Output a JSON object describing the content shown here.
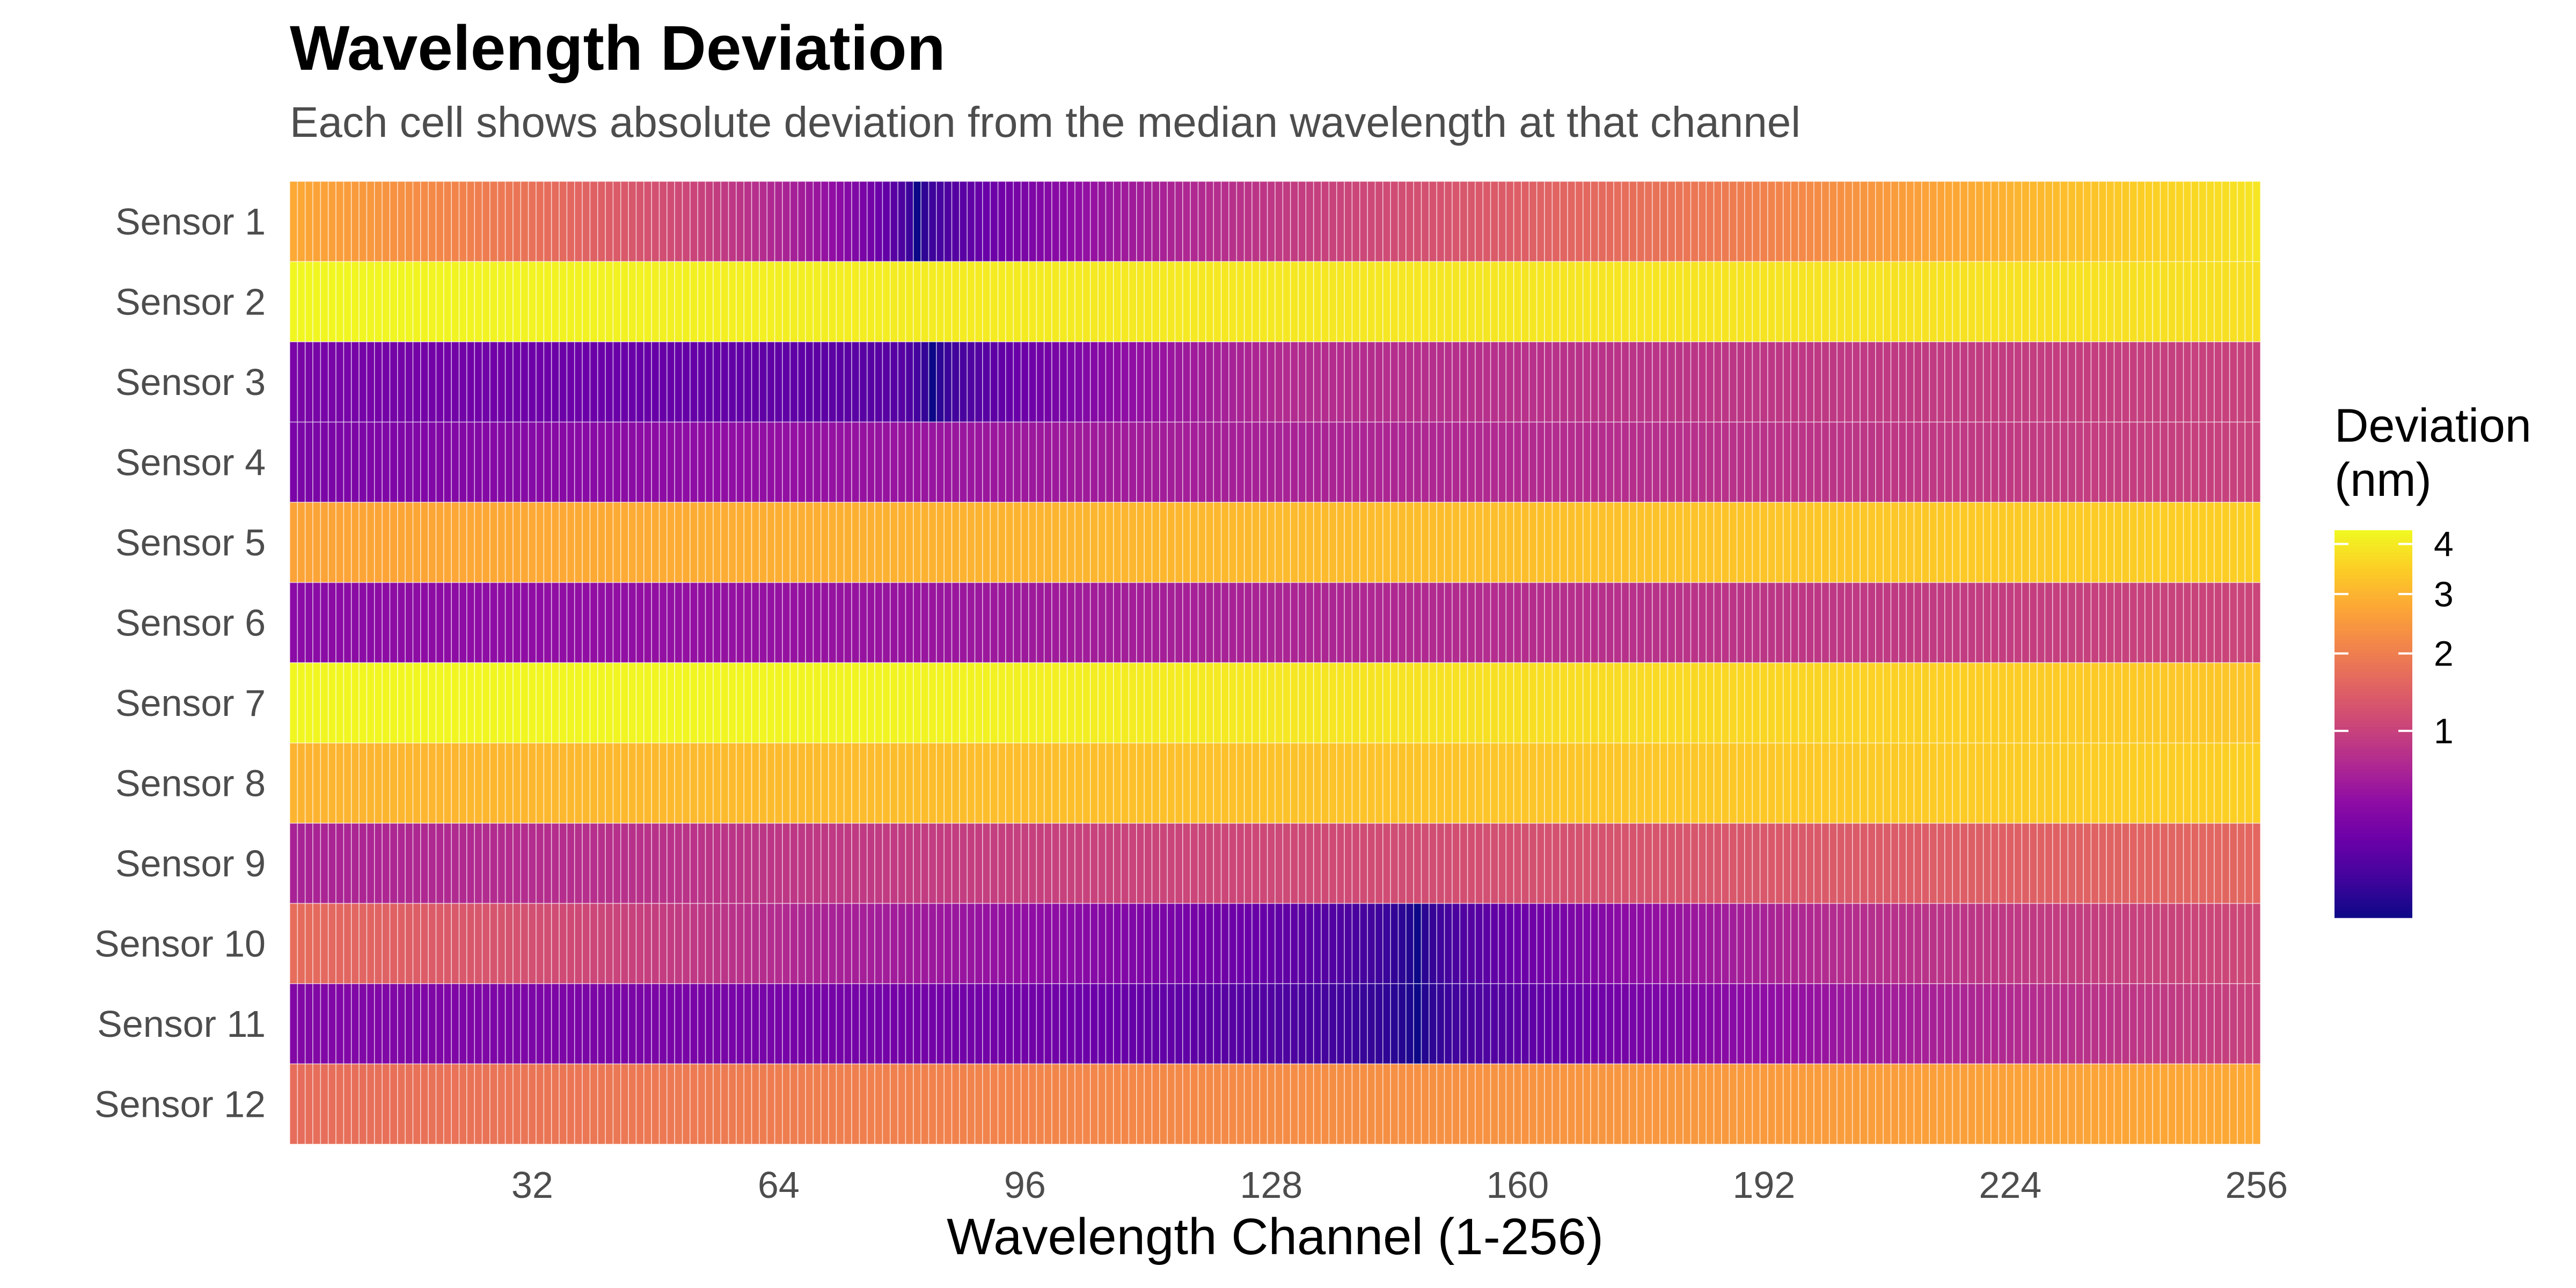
{
  "chart_data": {
    "type": "heatmap",
    "title": "Wavelength Deviation",
    "subtitle": "Each cell shows absolute deviation from the median wavelength at that channel",
    "xlabel": "Wavelength Channel (1-256)",
    "ylabel": "",
    "x_range": [
      1,
      256
    ],
    "x_ticks": [
      "32",
      "64",
      "96",
      "128",
      "160",
      "192",
      "224",
      "256"
    ],
    "rows": [
      "Sensor 1",
      "Sensor 2",
      "Sensor 3",
      "Sensor 4",
      "Sensor 5",
      "Sensor 6",
      "Sensor 7",
      "Sensor 8",
      "Sensor 9",
      "Sensor 10",
      "Sensor 11",
      "Sensor 12"
    ],
    "legend": {
      "title_line1": "Deviation",
      "title_line2": "(nm)",
      "scale": "sqrt",
      "range": [
        0,
        4.3
      ],
      "ticks": [
        "1",
        "2",
        "3",
        "4"
      ],
      "palette": "plasma"
    },
    "series": [
      {
        "name": "Sensor 1",
        "profile": [
          [
            1,
            2.8
          ],
          [
            40,
            1.5
          ],
          [
            82,
            0.0
          ],
          [
            130,
            0.9
          ],
          [
            190,
            2.0
          ],
          [
            256,
            3.9
          ]
        ]
      },
      {
        "name": "Sensor 2",
        "profile": [
          [
            1,
            4.25
          ],
          [
            100,
            4.0
          ],
          [
            256,
            3.8
          ]
        ]
      },
      {
        "name": "Sensor 3",
        "profile": [
          [
            1,
            0.25
          ],
          [
            80,
            0.1
          ],
          [
            84,
            0.0
          ],
          [
            130,
            0.7
          ],
          [
            256,
            1.0
          ]
        ]
      },
      {
        "name": "Sensor 4",
        "profile": [
          [
            1,
            0.25
          ],
          [
            100,
            0.5
          ],
          [
            256,
            1.0
          ]
        ]
      },
      {
        "name": "Sensor 5",
        "profile": [
          [
            1,
            2.7
          ],
          [
            256,
            3.5
          ]
        ]
      },
      {
        "name": "Sensor 6",
        "profile": [
          [
            1,
            0.35
          ],
          [
            80,
            0.45
          ],
          [
            256,
            1.05
          ]
        ]
      },
      {
        "name": "Sensor 7",
        "profile": [
          [
            1,
            4.25
          ],
          [
            80,
            4.2
          ],
          [
            256,
            3.3
          ]
        ]
      },
      {
        "name": "Sensor 8",
        "profile": [
          [
            1,
            3.0
          ],
          [
            256,
            3.5
          ]
        ]
      },
      {
        "name": "Sensor 9",
        "profile": [
          [
            1,
            0.6
          ],
          [
            256,
            1.6
          ]
        ]
      },
      {
        "name": "Sensor 10",
        "profile": [
          [
            1,
            1.7
          ],
          [
            70,
            0.6
          ],
          [
            147,
            0.0
          ],
          [
            200,
            0.7
          ],
          [
            256,
            1.1
          ]
        ]
      },
      {
        "name": "Sensor 11",
        "profile": [
          [
            1,
            0.3
          ],
          [
            100,
            0.2
          ],
          [
            147,
            0.0
          ],
          [
            200,
            0.45
          ],
          [
            256,
            1.0
          ]
        ]
      },
      {
        "name": "Sensor 12",
        "profile": [
          [
            1,
            1.7
          ],
          [
            256,
            2.8
          ]
        ]
      }
    ]
  }
}
